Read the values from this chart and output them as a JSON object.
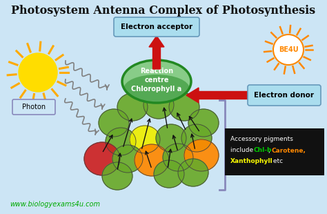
{
  "title": "Photosystem Antenna Complex of Photosynthesis",
  "title_fontsize": 11.5,
  "bg_color": "#cce5f5",
  "website": "www.biologyexams4u.com",
  "website_color": "#00aa00",
  "electron_acceptor_label": "Electron acceptor",
  "electron_donor_label": "Electron donor",
  "reaction_centre_label": "Reaction\ncentre\nChlorophyll a",
  "photon_label": "Photon",
  "chlb_label": "Chl-b",
  "chlb_color": "#00cc00",
  "carotene_label": " Carotene,",
  "carotene_color": "#ff8800",
  "xantho_label": "Xanthophyll",
  "xantho_color": "#ffff00",
  "etc_label": " etc",
  "be4u_label": "BE4U",
  "be4u_color": "#ff8800",
  "sun_color": "#ffdd00",
  "sun_ray_color": "#ffaa00",
  "reaction_centre_top": "#88cc88",
  "reaction_centre_bot": "#228822",
  "green_circle_color": "#6aaa2a",
  "red_circle_color": "#cc2222",
  "yellow_circle_color": "#eeee00",
  "orange_circle_color": "#ff8800",
  "arrow_color": "#cc1111",
  "small_arrow_color": "#111111",
  "electron_acceptor_bg": "#aaddee",
  "electron_donor_bg": "#aaddee",
  "photon_box_color": "#8888bb",
  "accessory_box_color": "#111111",
  "accessory_text_color": "#ffffff",
  "bracket_color": "#8888bb"
}
